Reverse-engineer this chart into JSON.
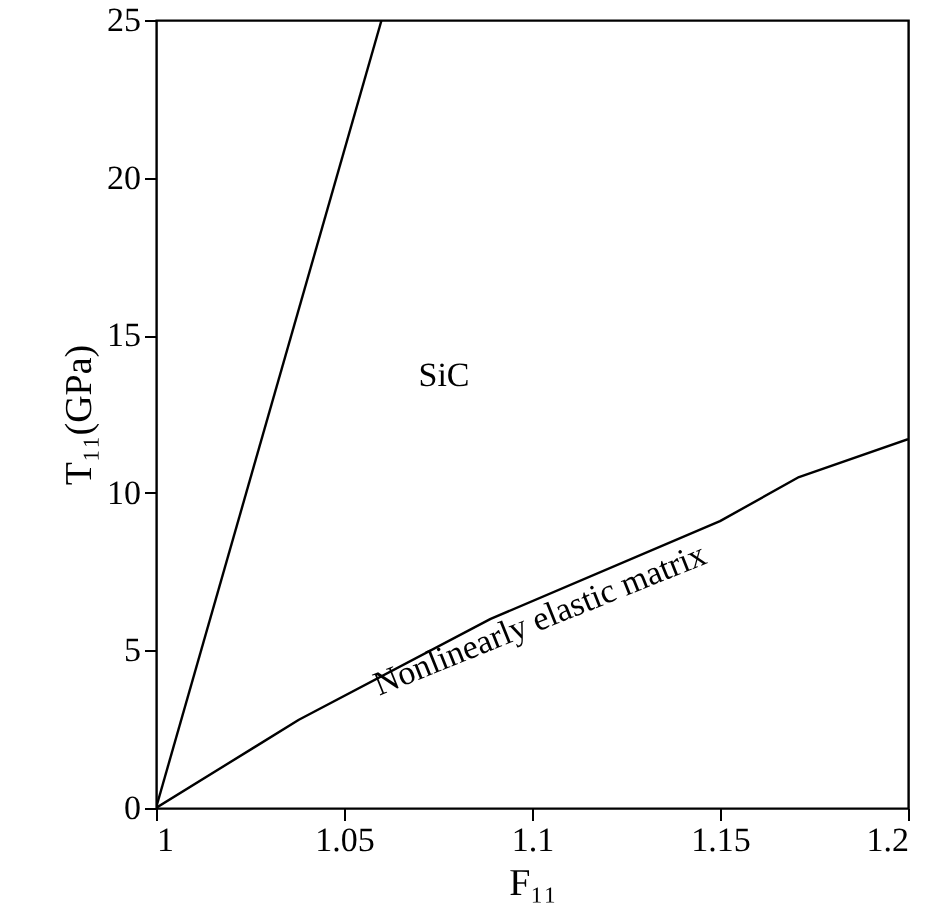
{
  "chart_data": {
    "type": "line",
    "xlabel": "F₁₁",
    "ylabel": "T₁₁(GPa)",
    "xlim": [
      1,
      1.2
    ],
    "xticks": [
      1,
      1.05,
      1.1,
      1.15,
      1.2
    ],
    "ylim": [
      0,
      25
    ],
    "yticks": [
      0,
      5,
      10,
      15,
      20,
      25
    ],
    "grid": false,
    "line_style": "solid",
    "marker": "none",
    "series": [
      {
        "color": "#000000",
        "x": [
          1,
          1.06
        ],
        "values": [
          0,
          25
        ]
      },
      {
        "color": "#000000",
        "x": [
          1,
          1.038,
          1.089,
          1.15,
          1.171,
          1.2
        ],
        "values": [
          0,
          2.8,
          6.0,
          9.1,
          10.5,
          11.7
        ]
      }
    ],
    "annotations": [
      "SiC",
      "Nonlinearly elastic matrix"
    ]
  }
}
